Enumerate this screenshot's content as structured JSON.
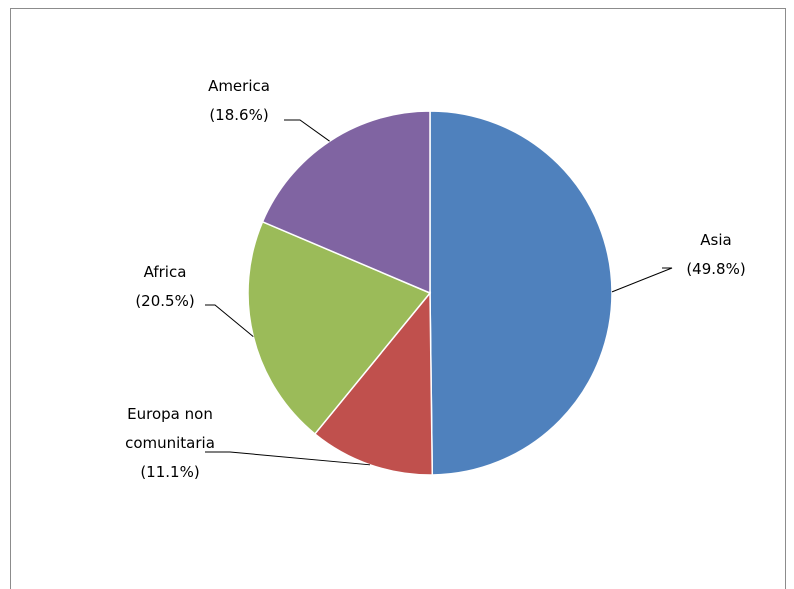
{
  "chart_data": {
    "type": "pie",
    "categories": [
      "Asia",
      "Europa non comunitaria",
      "Africa",
      "America"
    ],
    "values": [
      49.8,
      11.1,
      20.5,
      18.6
    ],
    "value_labels": [
      "(49.8%)",
      "(11.1%)",
      "(20.5%)",
      "(18.6%)"
    ],
    "colors": [
      "#4f81bd",
      "#c0504d",
      "#9bbb59",
      "#8064a2"
    ]
  }
}
